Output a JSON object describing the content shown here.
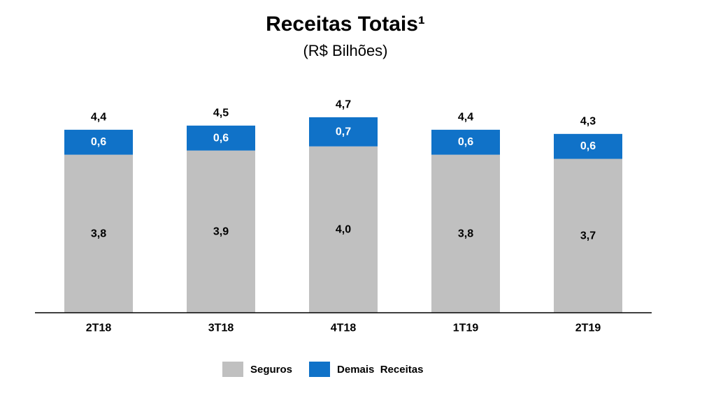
{
  "title": "Receitas Totais¹",
  "subtitle": "(R$ Bilhões)",
  "colors": {
    "seguros": "#c0c0c0",
    "demais": "#1072c8"
  },
  "chart_data": {
    "type": "bar",
    "stacked": true,
    "categories": [
      "2T18",
      "3T18",
      "4T18",
      "1T19",
      "2T19"
    ],
    "series": [
      {
        "name": "Seguros",
        "values": [
          3.8,
          3.9,
          4.0,
          3.8,
          3.7
        ],
        "labels": [
          "3,8",
          "3,9",
          "4,0",
          "3,8",
          "3,7"
        ]
      },
      {
        "name": "Demais  Receitas",
        "values": [
          0.6,
          0.6,
          0.7,
          0.6,
          0.6
        ],
        "labels": [
          "0,6",
          "0,6",
          "0,7",
          "0,6",
          "0,6"
        ]
      }
    ],
    "totals": [
      4.4,
      4.5,
      4.7,
      4.4,
      4.3
    ],
    "total_labels": [
      "4,4",
      "4,5",
      "4,7",
      "4,4",
      "4,3"
    ],
    "ylim": [
      0,
      4.7
    ],
    "grid": false,
    "legend": "bottom"
  }
}
